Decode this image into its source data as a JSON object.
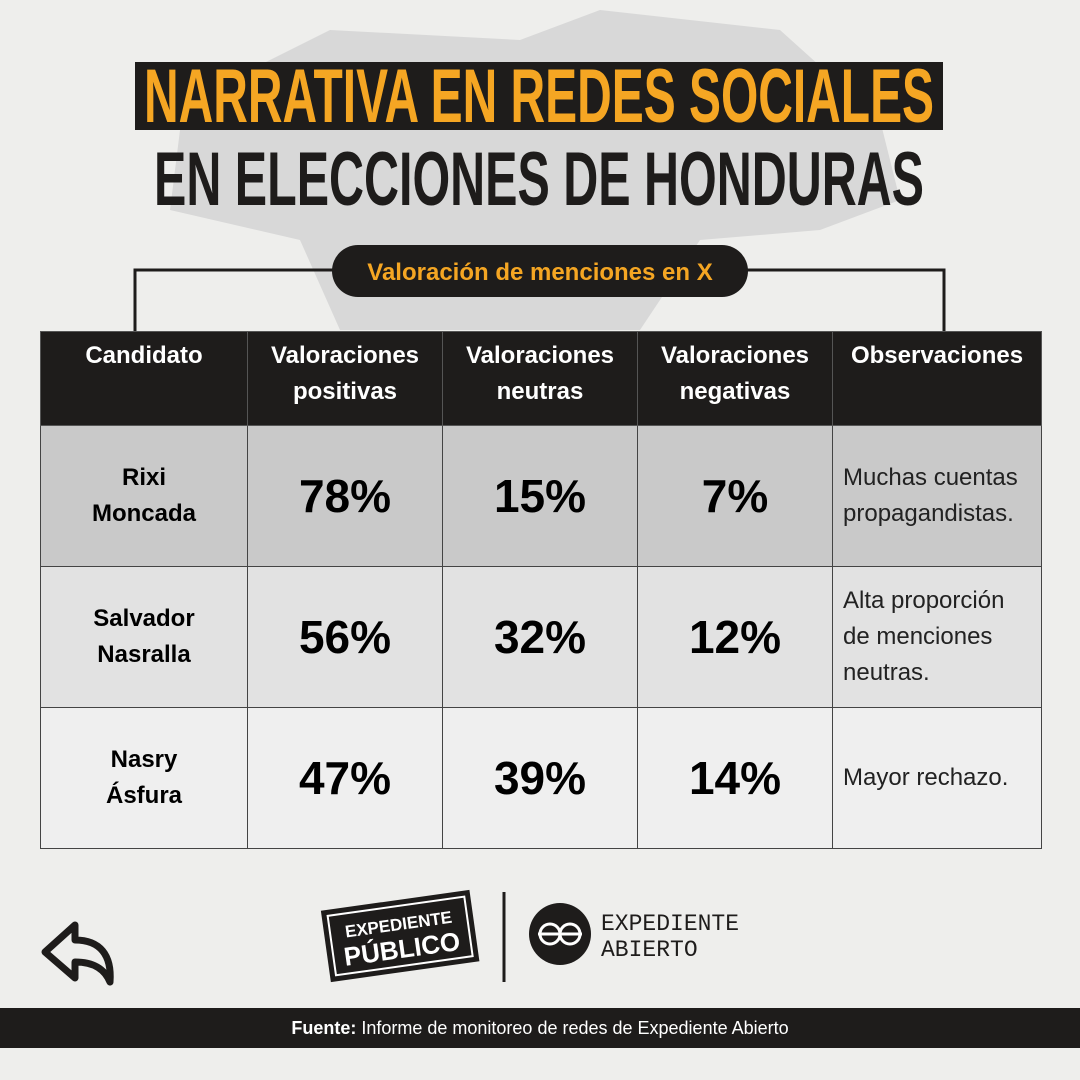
{
  "header": {
    "title_line1": "NARRATIVA EN REDES SOCIALES",
    "title_line2": "EN ELECCIONES DE HONDURAS",
    "subtitle": "Valoración de menciones en X"
  },
  "table": {
    "columns": [
      "Candidato",
      "Valoraciones positivas",
      "Valoraciones neutras",
      "Valoraciones negativas",
      "Observaciones"
    ],
    "rows": [
      [
        "Rixi Moncada",
        "78%",
        "15%",
        "7%",
        "Muchas cuentas propagandistas."
      ],
      [
        "Salvador Nasralla",
        "56%",
        "32%",
        "12%",
        "Alta proporción de menciones neutras."
      ],
      [
        "Nasry Ásfura",
        "47%",
        "39%",
        "14%",
        "Mayor rechazo."
      ]
    ]
  },
  "logos": {
    "left_line1": "EXPEDIENTE",
    "left_line2": "PÚBLICO",
    "right_line1": "EXPEDIENTE",
    "right_line2": "ABIERTO"
  },
  "footer": {
    "label": "Fuente:",
    "text": "Informe de monitoreo de redes de Expediente Abierto"
  }
}
